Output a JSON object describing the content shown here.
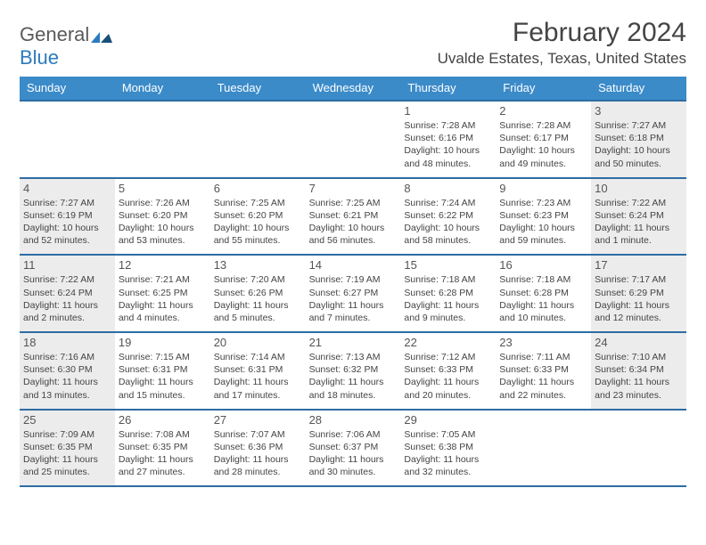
{
  "logo": {
    "general": "General",
    "blue": "Blue"
  },
  "title": "February 2024",
  "location": "Uvalde Estates, Texas, United States",
  "colors": {
    "header_bar": "#3b8bc9",
    "rule": "#2e6da4",
    "shaded": "#ececec",
    "text": "#444444"
  },
  "weekdays": [
    "Sunday",
    "Monday",
    "Tuesday",
    "Wednesday",
    "Thursday",
    "Friday",
    "Saturday"
  ],
  "weeks": [
    [
      {
        "blank": true
      },
      {
        "blank": true
      },
      {
        "blank": true
      },
      {
        "blank": true
      },
      {
        "num": "1",
        "sunrise": "Sunrise: 7:28 AM",
        "sunset": "Sunset: 6:16 PM",
        "dl1": "Daylight: 10 hours",
        "dl2": "and 48 minutes."
      },
      {
        "num": "2",
        "sunrise": "Sunrise: 7:28 AM",
        "sunset": "Sunset: 6:17 PM",
        "dl1": "Daylight: 10 hours",
        "dl2": "and 49 minutes."
      },
      {
        "num": "3",
        "shaded": true,
        "sunrise": "Sunrise: 7:27 AM",
        "sunset": "Sunset: 6:18 PM",
        "dl1": "Daylight: 10 hours",
        "dl2": "and 50 minutes."
      }
    ],
    [
      {
        "num": "4",
        "shaded": true,
        "sunrise": "Sunrise: 7:27 AM",
        "sunset": "Sunset: 6:19 PM",
        "dl1": "Daylight: 10 hours",
        "dl2": "and 52 minutes."
      },
      {
        "num": "5",
        "sunrise": "Sunrise: 7:26 AM",
        "sunset": "Sunset: 6:20 PM",
        "dl1": "Daylight: 10 hours",
        "dl2": "and 53 minutes."
      },
      {
        "num": "6",
        "sunrise": "Sunrise: 7:25 AM",
        "sunset": "Sunset: 6:20 PM",
        "dl1": "Daylight: 10 hours",
        "dl2": "and 55 minutes."
      },
      {
        "num": "7",
        "sunrise": "Sunrise: 7:25 AM",
        "sunset": "Sunset: 6:21 PM",
        "dl1": "Daylight: 10 hours",
        "dl2": "and 56 minutes."
      },
      {
        "num": "8",
        "sunrise": "Sunrise: 7:24 AM",
        "sunset": "Sunset: 6:22 PM",
        "dl1": "Daylight: 10 hours",
        "dl2": "and 58 minutes."
      },
      {
        "num": "9",
        "sunrise": "Sunrise: 7:23 AM",
        "sunset": "Sunset: 6:23 PM",
        "dl1": "Daylight: 10 hours",
        "dl2": "and 59 minutes."
      },
      {
        "num": "10",
        "shaded": true,
        "sunrise": "Sunrise: 7:22 AM",
        "sunset": "Sunset: 6:24 PM",
        "dl1": "Daylight: 11 hours",
        "dl2": "and 1 minute."
      }
    ],
    [
      {
        "num": "11",
        "shaded": true,
        "sunrise": "Sunrise: 7:22 AM",
        "sunset": "Sunset: 6:24 PM",
        "dl1": "Daylight: 11 hours",
        "dl2": "and 2 minutes."
      },
      {
        "num": "12",
        "sunrise": "Sunrise: 7:21 AM",
        "sunset": "Sunset: 6:25 PM",
        "dl1": "Daylight: 11 hours",
        "dl2": "and 4 minutes."
      },
      {
        "num": "13",
        "sunrise": "Sunrise: 7:20 AM",
        "sunset": "Sunset: 6:26 PM",
        "dl1": "Daylight: 11 hours",
        "dl2": "and 5 minutes."
      },
      {
        "num": "14",
        "sunrise": "Sunrise: 7:19 AM",
        "sunset": "Sunset: 6:27 PM",
        "dl1": "Daylight: 11 hours",
        "dl2": "and 7 minutes."
      },
      {
        "num": "15",
        "sunrise": "Sunrise: 7:18 AM",
        "sunset": "Sunset: 6:28 PM",
        "dl1": "Daylight: 11 hours",
        "dl2": "and 9 minutes."
      },
      {
        "num": "16",
        "sunrise": "Sunrise: 7:18 AM",
        "sunset": "Sunset: 6:28 PM",
        "dl1": "Daylight: 11 hours",
        "dl2": "and 10 minutes."
      },
      {
        "num": "17",
        "shaded": true,
        "sunrise": "Sunrise: 7:17 AM",
        "sunset": "Sunset: 6:29 PM",
        "dl1": "Daylight: 11 hours",
        "dl2": "and 12 minutes."
      }
    ],
    [
      {
        "num": "18",
        "shaded": true,
        "sunrise": "Sunrise: 7:16 AM",
        "sunset": "Sunset: 6:30 PM",
        "dl1": "Daylight: 11 hours",
        "dl2": "and 13 minutes."
      },
      {
        "num": "19",
        "sunrise": "Sunrise: 7:15 AM",
        "sunset": "Sunset: 6:31 PM",
        "dl1": "Daylight: 11 hours",
        "dl2": "and 15 minutes."
      },
      {
        "num": "20",
        "sunrise": "Sunrise: 7:14 AM",
        "sunset": "Sunset: 6:31 PM",
        "dl1": "Daylight: 11 hours",
        "dl2": "and 17 minutes."
      },
      {
        "num": "21",
        "sunrise": "Sunrise: 7:13 AM",
        "sunset": "Sunset: 6:32 PM",
        "dl1": "Daylight: 11 hours",
        "dl2": "and 18 minutes."
      },
      {
        "num": "22",
        "sunrise": "Sunrise: 7:12 AM",
        "sunset": "Sunset: 6:33 PM",
        "dl1": "Daylight: 11 hours",
        "dl2": "and 20 minutes."
      },
      {
        "num": "23",
        "sunrise": "Sunrise: 7:11 AM",
        "sunset": "Sunset: 6:33 PM",
        "dl1": "Daylight: 11 hours",
        "dl2": "and 22 minutes."
      },
      {
        "num": "24",
        "shaded": true,
        "sunrise": "Sunrise: 7:10 AM",
        "sunset": "Sunset: 6:34 PM",
        "dl1": "Daylight: 11 hours",
        "dl2": "and 23 minutes."
      }
    ],
    [
      {
        "num": "25",
        "shaded": true,
        "sunrise": "Sunrise: 7:09 AM",
        "sunset": "Sunset: 6:35 PM",
        "dl1": "Daylight: 11 hours",
        "dl2": "and 25 minutes."
      },
      {
        "num": "26",
        "sunrise": "Sunrise: 7:08 AM",
        "sunset": "Sunset: 6:35 PM",
        "dl1": "Daylight: 11 hours",
        "dl2": "and 27 minutes."
      },
      {
        "num": "27",
        "sunrise": "Sunrise: 7:07 AM",
        "sunset": "Sunset: 6:36 PM",
        "dl1": "Daylight: 11 hours",
        "dl2": "and 28 minutes."
      },
      {
        "num": "28",
        "sunrise": "Sunrise: 7:06 AM",
        "sunset": "Sunset: 6:37 PM",
        "dl1": "Daylight: 11 hours",
        "dl2": "and 30 minutes."
      },
      {
        "num": "29",
        "sunrise": "Sunrise: 7:05 AM",
        "sunset": "Sunset: 6:38 PM",
        "dl1": "Daylight: 11 hours",
        "dl2": "and 32 minutes."
      },
      {
        "blank": true
      },
      {
        "blank": true
      }
    ]
  ]
}
